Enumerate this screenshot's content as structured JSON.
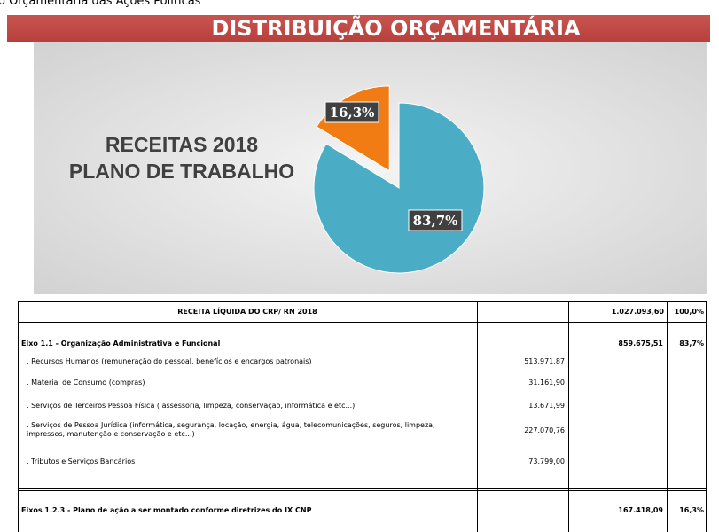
{
  "header_fragment": "o Orçamentária das Ações Políticas",
  "banner": "DISTRIBUIÇÃO ORÇAMENTÁRIA",
  "chart": {
    "type": "pie",
    "title_lines": [
      "RECEITAS 2018",
      "PLANO DE TRABALHO"
    ],
    "values": [
      83.7,
      16.3
    ],
    "value_labels": [
      "83,7%",
      "16,3%"
    ],
    "colors": [
      "#4bacc6",
      "#f07c13"
    ]
  },
  "table": {
    "header": {
      "label": "RECEITA LÍQUIDA DO CRP/ RN 2018",
      "total": "1.027.093,60",
      "percent": "100,0%"
    },
    "sections": [
      {
        "label": "Eixo 1.1 - Organização Administrativa e Funcional",
        "total": "859.675,51",
        "percent": "83,7%",
        "items": [
          {
            "label": ". Recursos Humanos  (remuneração do pessoal, benefícios e encargos patronais)",
            "value": "513.971,87"
          },
          {
            "label": ". Material de Consumo (compras)",
            "value": "31.161,90"
          },
          {
            "label": ". Serviços de Terceiros Pessoa Física ( assessoria, limpeza, conservação, informática e etc...)",
            "value": "13.671,99"
          },
          {
            "label": ". Serviços de  Pessoa Jurídica (informática, segurança, locação, energia, água, telecomunicações, seguros, limpeza, impressos, manutenção e conservação e etc...)",
            "value": "227.070,76"
          },
          {
            "label": ". Tributos e Serviços Bancários",
            "value": "73.799,00"
          }
        ]
      },
      {
        "label": "Eixos 1.2.3 - Plano de ação a ser montado conforme diretrizes do IX  CNP",
        "total": "167.418,09",
        "percent": "16,3%",
        "items": []
      }
    ]
  }
}
